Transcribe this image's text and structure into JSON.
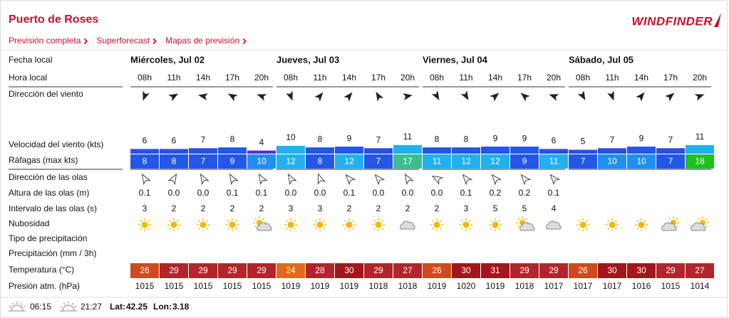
{
  "header": {
    "title": "Puerto de Roses",
    "links": [
      "Previsión completa",
      "Superforecast",
      "Mapas de previsión"
    ],
    "logo": "WINDFINDER"
  },
  "row_labels": [
    "Fecha local",
    "Hora local",
    "Dirección del viento",
    "Velocidad del viento (kts)",
    "Ráfagas (max kts)",
    "Dirección de las olas",
    "Altura de las olas (m)",
    "Intervalo de las olas (s)",
    "Nubosidad",
    "Tipo de precipitación",
    "Precipitación (mm / 3h)",
    "Temperatura (°C)",
    "Presión atm. (hPa)"
  ],
  "days": [
    {
      "date": "Miércoles, Jul 02",
      "hours": [
        "08h",
        "11h",
        "14h",
        "17h",
        "20h"
      ],
      "wind_dir": [
        200,
        60,
        280,
        300,
        290
      ],
      "wind": [
        6,
        6,
        7,
        8,
        4
      ],
      "gusts": [
        8,
        8,
        7,
        9,
        10
      ],
      "wave_dir": [
        330,
        30,
        330,
        330,
        330
      ],
      "wave_height": [
        "0.1",
        "0.0",
        "0.0",
        "0.1",
        "0.1"
      ],
      "wave_period": [
        3,
        2,
        2,
        2,
        2
      ],
      "temp": [
        26,
        29,
        29,
        29,
        29
      ],
      "pressure": [
        1015,
        1015,
        1015,
        1015,
        1015
      ]
    },
    {
      "date": "Jueves, Jul 03",
      "hours": [
        "08h",
        "11h",
        "14h",
        "17h",
        "20h"
      ],
      "wind_dir": [
        160,
        40,
        40,
        330,
        80
      ],
      "wind": [
        10,
        8,
        9,
        7,
        11
      ],
      "gusts": [
        12,
        8,
        12,
        7,
        17
      ],
      "wave_dir": [
        330,
        340,
        320,
        320,
        330
      ],
      "wave_height": [
        "0.0",
        "0.0",
        "0.1",
        "0.0",
        "0.0"
      ],
      "wave_period": [
        3,
        3,
        2,
        2,
        2
      ],
      "temp": [
        24,
        28,
        30,
        29,
        27
      ],
      "pressure": [
        1019,
        1019,
        1019,
        1018,
        1018
      ]
    },
    {
      "date": "Viernes, Jul 04",
      "hours": [
        "08h",
        "11h",
        "14h",
        "17h",
        "20h"
      ],
      "wind_dir": [
        150,
        150,
        50,
        310,
        290
      ],
      "wind": [
        8,
        8,
        9,
        9,
        6
      ],
      "gusts": [
        11,
        12,
        12,
        9,
        11
      ],
      "wave_dir": [
        300,
        320,
        320,
        320,
        320
      ],
      "wave_height": [
        "0.0",
        "0.1",
        "0.2",
        "0.2",
        "0.1"
      ],
      "wave_period": [
        2,
        3,
        5,
        5,
        4
      ],
      "temp": [
        26,
        30,
        31,
        29,
        29
      ],
      "pressure": [
        1019,
        1020,
        1019,
        1018,
        1017
      ]
    },
    {
      "date": "Sábado, Jul 05",
      "hours": [
        "08h",
        "11h",
        "14h",
        "17h",
        "20h"
      ],
      "wind_dir": [
        150,
        160,
        40,
        50,
        70
      ],
      "wind": [
        5,
        7,
        9,
        7,
        11
      ],
      "gusts": [
        7,
        10,
        10,
        7,
        18
      ],
      "wave_dir": [],
      "wave_height": [],
      "wave_period": [],
      "temp": [
        26,
        30,
        30,
        29,
        27
      ],
      "pressure": [
        1017,
        1017,
        1016,
        1015,
        1014
      ]
    }
  ],
  "footer": {
    "sunrise": "06:15",
    "sunset": "21:27",
    "lat_label": "Lat:",
    "lat": "42.25",
    "lon_label": "Lon:",
    "lon": "3.18"
  }
}
